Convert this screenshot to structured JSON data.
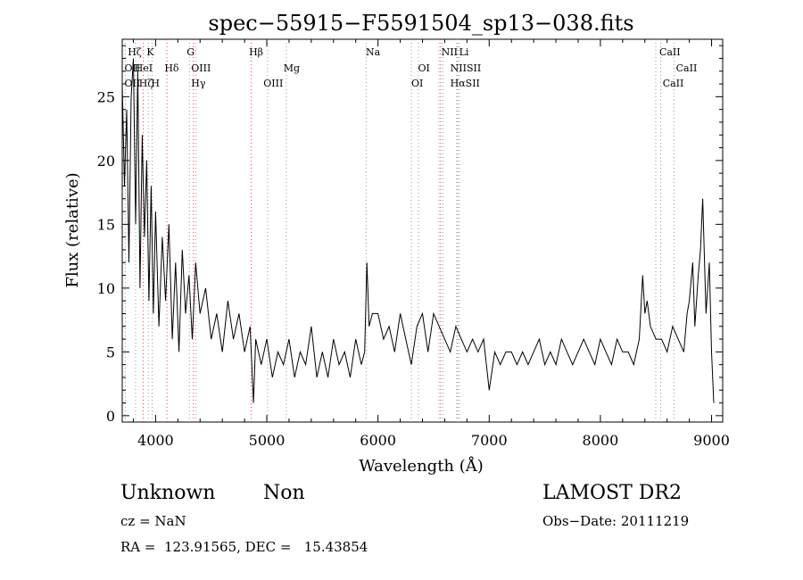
{
  "chart_data": {
    "type": "line",
    "title": "spec−55915−F5591504_sp13−038.fits",
    "xlabel": "Wavelength (Å)",
    "ylabel": "Flux (relative)",
    "xlim": [
      3700,
      9100
    ],
    "ylim": [
      -0.5,
      29.5
    ],
    "xticks": [
      4000,
      5000,
      6000,
      7000,
      8000,
      9000
    ],
    "yticks": [
      0,
      5,
      10,
      15,
      20,
      25
    ],
    "grid": false,
    "series": [
      {
        "line_color": "#000000",
        "x": [
          3700,
          3720,
          3740,
          3760,
          3780,
          3800,
          3820,
          3840,
          3860,
          3880,
          3900,
          3920,
          3940,
          3960,
          3980,
          4000,
          4030,
          4060,
          4090,
          4120,
          4150,
          4180,
          4210,
          4240,
          4270,
          4300,
          4330,
          4360,
          4400,
          4450,
          4500,
          4550,
          4600,
          4650,
          4700,
          4750,
          4800,
          4850,
          4880,
          4900,
          4950,
          5000,
          5050,
          5100,
          5150,
          5200,
          5250,
          5300,
          5350,
          5400,
          5450,
          5500,
          5550,
          5600,
          5650,
          5700,
          5750,
          5800,
          5850,
          5880,
          5900,
          5920,
          5950,
          6000,
          6050,
          6100,
          6150,
          6200,
          6250,
          6300,
          6350,
          6400,
          6450,
          6500,
          6550,
          6600,
          6650,
          6700,
          6750,
          6800,
          6850,
          6900,
          6950,
          7000,
          7050,
          7100,
          7150,
          7200,
          7250,
          7300,
          7350,
          7400,
          7450,
          7500,
          7550,
          7600,
          7650,
          7700,
          7750,
          7800,
          7850,
          7900,
          7950,
          8000,
          8050,
          8100,
          8150,
          8200,
          8250,
          8300,
          8350,
          8380,
          8400,
          8420,
          8450,
          8500,
          8550,
          8600,
          8650,
          8700,
          8750,
          8780,
          8800,
          8830,
          8850,
          8880,
          8900,
          8920,
          8950,
          8980,
          9000,
          9020
        ],
        "y": [
          26,
          18,
          24,
          12,
          25,
          28,
          15,
          27,
          10,
          22,
          14,
          20,
          9,
          18,
          8,
          16,
          7,
          14,
          9,
          15,
          6,
          12,
          5,
          13,
          8,
          11,
          6,
          12,
          8,
          10,
          6,
          8,
          5,
          9,
          6,
          8,
          5,
          7,
          1,
          6,
          4,
          6,
          3,
          5,
          4,
          6,
          3,
          5,
          4,
          7,
          3,
          5,
          3,
          6,
          4,
          5,
          3,
          6,
          4,
          5,
          12,
          7,
          8,
          8,
          6,
          7,
          5,
          8,
          6,
          4,
          7,
          8,
          5,
          8,
          7,
          6,
          5,
          7,
          6,
          5,
          6,
          5,
          6,
          2,
          5,
          4,
          5,
          5,
          4,
          5,
          4,
          5,
          6,
          4,
          5,
          4,
          6,
          5,
          4,
          5,
          6,
          5,
          4,
          6,
          5,
          4,
          6,
          5,
          5,
          4,
          6,
          11,
          8,
          9,
          7,
          6,
          6,
          5,
          7,
          6,
          5,
          8,
          9,
          12,
          7,
          11,
          13,
          17,
          8,
          12,
          5,
          1
        ]
      }
    ],
    "lines": [
      {
        "label": "Hζ",
        "x": 3889,
        "color": "#ff3333"
      },
      {
        "label": "OII",
        "x": 3727,
        "color": "#999999"
      },
      {
        "label": "HeI",
        "x": 3820,
        "color": "#999999"
      },
      {
        "label": "K",
        "x": 3934,
        "color": "#999999"
      },
      {
        "label": "H",
        "x": 3969,
        "color": "#999999"
      },
      {
        "label": "Hδ",
        "x": 4102,
        "color": "#ff3333"
      },
      {
        "label": "G",
        "x": 4304,
        "color": "#999999"
      },
      {
        "label": "OIII",
        "x": 4363,
        "color": "#999999"
      },
      {
        "label": "Hγ",
        "x": 4341,
        "color": "#ff3333"
      },
      {
        "label": "Hβ",
        "x": 4861,
        "color": "#ff3333"
      },
      {
        "label": "OIII",
        "x": 5007,
        "color": "#999999"
      },
      {
        "label": "Mg",
        "x": 5175,
        "color": "#999999"
      },
      {
        "label": "Na",
        "x": 5893,
        "color": "#999999"
      },
      {
        "label": "OI",
        "x": 6300,
        "color": "#999999"
      },
      {
        "label": "OI",
        "x": 6364,
        "color": "#999999"
      },
      {
        "label": "NII",
        "x": 6548,
        "color": "#999999"
      },
      {
        "label": "Hα",
        "x": 6563,
        "color": "#ff3333"
      },
      {
        "label": "NII",
        "x": 6584,
        "color": "#999999"
      },
      {
        "label": "Li",
        "x": 6708,
        "color": "#999999"
      },
      {
        "label": "SII",
        "x": 6717,
        "color": "#999999"
      },
      {
        "label": "SII",
        "x": 6731,
        "color": "#999999"
      },
      {
        "label": "CaII",
        "x": 8498,
        "color": "#999999"
      },
      {
        "label": "CaII",
        "x": 8542,
        "color": "#999999"
      },
      {
        "label": "CaII",
        "x": 8662,
        "color": "#999999"
      }
    ],
    "line_labels": [
      {
        "text": "Hζ",
        "x": 3750,
        "row": 0
      },
      {
        "text": "K",
        "x": 3920,
        "row": 0
      },
      {
        "text": "OII",
        "x": 3720,
        "row": 1
      },
      {
        "text": "HeI",
        "x": 3810,
        "row": 1
      },
      {
        "text": "OII",
        "x": 3720,
        "row": 2
      },
      {
        "text": "Hζ",
        "x": 3850,
        "row": 2
      },
      {
        "text": "H",
        "x": 3960,
        "row": 2
      },
      {
        "text": "Hδ",
        "x": 4080,
        "row": 1
      },
      {
        "text": "G",
        "x": 4280,
        "row": 0
      },
      {
        "text": "OIII",
        "x": 4320,
        "row": 1
      },
      {
        "text": "Hγ",
        "x": 4320,
        "row": 2
      },
      {
        "text": "Hβ",
        "x": 4840,
        "row": 0
      },
      {
        "text": "Mg",
        "x": 5150,
        "row": 1
      },
      {
        "text": "OIII",
        "x": 4970,
        "row": 2
      },
      {
        "text": "Na",
        "x": 5890,
        "row": 0
      },
      {
        "text": "OI",
        "x": 6360,
        "row": 1
      },
      {
        "text": "OI",
        "x": 6300,
        "row": 2
      },
      {
        "text": "NII",
        "x": 6570,
        "row": 0
      },
      {
        "text": "Li",
        "x": 6730,
        "row": 0
      },
      {
        "text": "NIISII",
        "x": 6650,
        "row": 1
      },
      {
        "text": "HαSII",
        "x": 6650,
        "row": 2
      },
      {
        "text": "CaII",
        "x": 8530,
        "row": 0
      },
      {
        "text": "CaII",
        "x": 8680,
        "row": 1
      },
      {
        "text": "CaII",
        "x": 8560,
        "row": 2
      }
    ]
  },
  "info": {
    "classification": "Unknown",
    "subclass": "Non",
    "survey": "LAMOST DR2",
    "redshift": "cz = NaN",
    "obs_date": "Obs−Date: 20111219",
    "coords": "RA =  123.91565, DEC =   15.43854"
  }
}
